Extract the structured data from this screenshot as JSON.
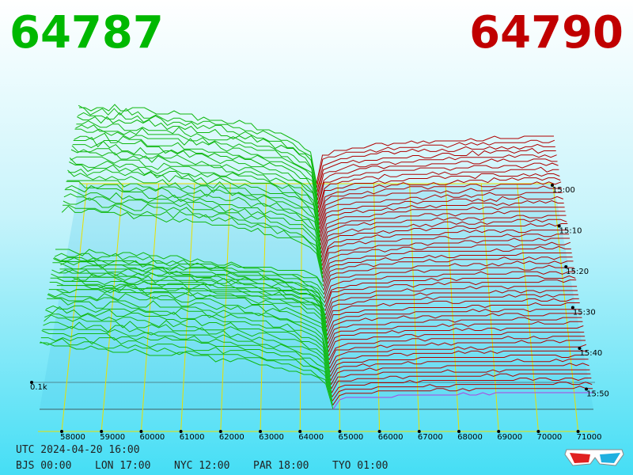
{
  "bid_price": "64787",
  "ask_price": "64790",
  "price_axis": [
    "58000",
    "59000",
    "60000",
    "61000",
    "62000",
    "63000",
    "64000",
    "65000",
    "66000",
    "67000",
    "68000",
    "69000",
    "70000",
    "71000"
  ],
  "time_axis": [
    "15:00",
    "15:10",
    "15:20",
    "15:30",
    "15:40",
    "15:50"
  ],
  "depth_label": "0.1k",
  "utc": "UTC 2024-04-20 16:00",
  "clocks": [
    "BJS 00:00",
    "LON 17:00",
    "NYC 12:00",
    "PAR 18:00",
    "TYO 01:00"
  ]
}
